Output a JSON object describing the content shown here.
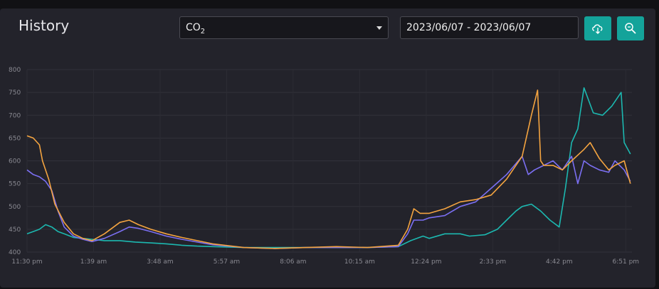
{
  "header": {
    "title": "History",
    "metric_prefix": "CO",
    "metric_sub": "2",
    "date_range": "2023/06/07 - 2023/06/07",
    "download_icon": "cloud-download-icon",
    "zoom_icon": "zoom-icon"
  },
  "colors": {
    "accent": "#14a39a",
    "series": [
      "#f4a440",
      "#7b6ff2",
      "#1cb8b0"
    ]
  },
  "chart_data": {
    "type": "line",
    "xlabel": "",
    "ylabel": "",
    "ylim": [
      400,
      800
    ],
    "yticks": [
      400,
      450,
      500,
      550,
      600,
      650,
      700,
      750,
      800
    ],
    "xlim": [
      0,
      19.55
    ],
    "xticks": [
      {
        "x": 0,
        "label": "11:30 pm"
      },
      {
        "x": 2.15,
        "label": "1:39 am"
      },
      {
        "x": 4.3,
        "label": "3:48 am"
      },
      {
        "x": 6.45,
        "label": "5:57 am"
      },
      {
        "x": 8.6,
        "label": "8:06 am"
      },
      {
        "x": 10.75,
        "label": "10:15 am"
      },
      {
        "x": 12.9,
        "label": "12:24 pm"
      },
      {
        "x": 15.05,
        "label": "2:33 pm"
      },
      {
        "x": 17.2,
        "label": "4:42 pm"
      },
      {
        "x": 19.35,
        "label": "6:51 pm"
      }
    ],
    "grid": true,
    "series": [
      {
        "x": [
          0,
          0.2,
          0.4,
          0.5,
          0.7,
          0.9,
          1.2,
          1.5,
          1.8,
          2.1,
          2.5,
          3.0,
          3.3,
          3.6,
          4.0,
          4.5,
          5.0,
          5.5,
          6.0,
          7.0,
          8.0,
          9.0,
          10.0,
          11.0,
          12.0,
          12.3,
          12.5,
          12.7,
          13.0,
          13.5,
          14.0,
          14.5,
          15.0,
          15.5,
          16.0,
          16.3,
          16.5,
          16.6,
          16.7,
          17.0,
          17.3,
          17.6,
          18.0,
          18.2,
          18.5,
          18.8,
          19.0,
          19.3,
          19.5
        ],
        "y": [
          655,
          650,
          635,
          600,
          560,
          505,
          465,
          440,
          430,
          425,
          440,
          465,
          470,
          460,
          450,
          440,
          432,
          425,
          418,
          410,
          408,
          410,
          412,
          410,
          415,
          450,
          495,
          485,
          485,
          495,
          510,
          515,
          525,
          560,
          610,
          700,
          755,
          600,
          590,
          590,
          580,
          600,
          625,
          640,
          605,
          580,
          590,
          600,
          550
        ]
      },
      {
        "x": [
          0,
          0.2,
          0.4,
          0.6,
          0.8,
          1.0,
          1.2,
          1.5,
          1.8,
          2.1,
          2.5,
          3.0,
          3.3,
          3.6,
          4.0,
          4.5,
          5.0,
          5.5,
          6.0,
          7.0,
          8.0,
          9.0,
          10.0,
          11.0,
          12.0,
          12.3,
          12.5,
          12.8,
          13.0,
          13.5,
          14.0,
          14.5,
          15.0,
          15.5,
          16.0,
          16.2,
          16.4,
          16.7,
          17.0,
          17.3,
          17.6,
          17.8,
          18.0,
          18.2,
          18.5,
          18.8,
          19.0,
          19.3,
          19.5
        ],
        "y": [
          580,
          570,
          565,
          555,
          535,
          490,
          455,
          435,
          428,
          423,
          430,
          445,
          455,
          452,
          445,
          435,
          428,
          422,
          416,
          410,
          408,
          410,
          410,
          410,
          412,
          440,
          470,
          470,
          475,
          480,
          500,
          510,
          540,
          570,
          610,
          570,
          580,
          590,
          600,
          580,
          610,
          550,
          600,
          590,
          580,
          575,
          600,
          580,
          555
        ]
      },
      {
        "x": [
          0,
          0.2,
          0.4,
          0.6,
          0.8,
          1.0,
          1.2,
          1.5,
          1.8,
          2.1,
          2.5,
          3.0,
          3.5,
          4.0,
          4.5,
          5.0,
          5.5,
          6.0,
          7.0,
          8.0,
          9.0,
          10.0,
          11.0,
          12.0,
          12.4,
          12.8,
          13.0,
          13.5,
          14.0,
          14.3,
          14.8,
          15.2,
          15.5,
          15.8,
          16.0,
          16.3,
          16.6,
          16.9,
          17.2,
          17.4,
          17.6,
          17.8,
          18.0,
          18.3,
          18.6,
          18.9,
          19.2,
          19.3,
          19.5
        ],
        "y": [
          440,
          445,
          450,
          460,
          455,
          445,
          440,
          432,
          430,
          428,
          425,
          425,
          422,
          420,
          418,
          415,
          413,
          412,
          410,
          410,
          410,
          410,
          410,
          412,
          425,
          435,
          430,
          440,
          440,
          435,
          438,
          450,
          470,
          490,
          500,
          505,
          490,
          470,
          455,
          540,
          640,
          670,
          760,
          705,
          700,
          720,
          750,
          640,
          615
        ]
      }
    ]
  }
}
